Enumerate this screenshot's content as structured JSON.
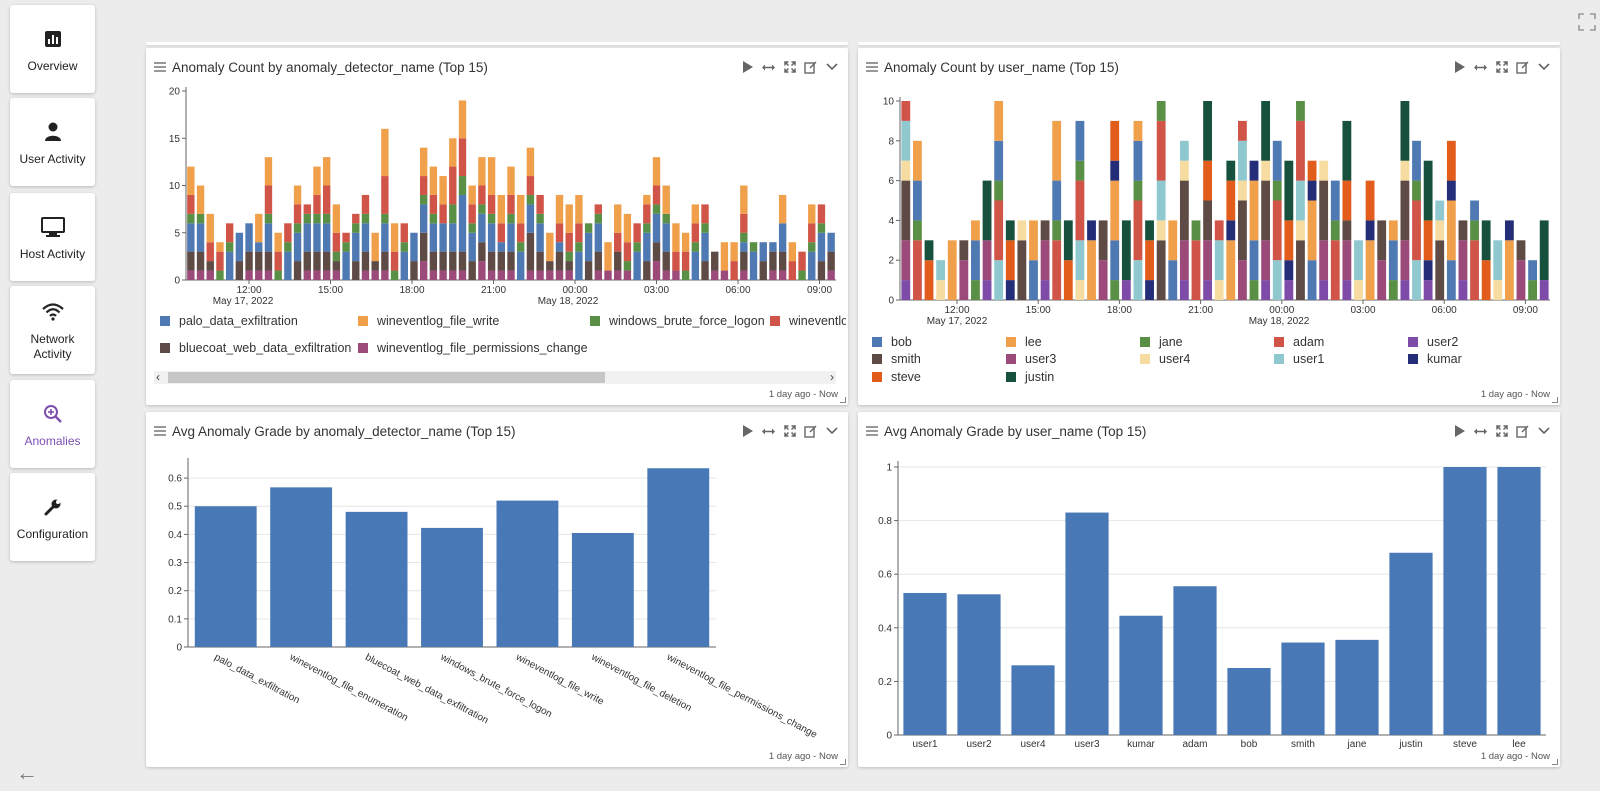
{
  "nav": {
    "items": [
      {
        "label": "Overview",
        "icon": "overview-chart-icon"
      },
      {
        "label": "User Activity",
        "icon": "user-icon"
      },
      {
        "label": "Host Activity",
        "icon": "monitor-icon"
      },
      {
        "label": "Network Activity",
        "icon": "wifi-icon"
      },
      {
        "label": "Anomalies",
        "icon": "zoom-anomaly-icon",
        "active": true
      },
      {
        "label": "Configuration",
        "icon": "wrench-icon"
      }
    ]
  },
  "colors": {
    "accent": "#7b4fb0",
    "bar": "#4878b6"
  },
  "panels": {
    "p1": {
      "title": "Anomaly Count by anomaly_detector_name (Top 15)",
      "footer": "1 day ago - Now"
    },
    "p2": {
      "title": "Anomaly Count by user_name (Top 15)",
      "footer": "1 day ago - Now"
    },
    "p3": {
      "title": "Avg Anomaly Grade by anomaly_detector_name (Top 15)",
      "footer": "1 day ago - Now"
    },
    "p4": {
      "title": "Avg Anomaly Grade by user_name (Top 15)",
      "footer": "1 day ago - Now"
    }
  },
  "chart_data": [
    {
      "type": "bar",
      "stacked": true,
      "title": "Anomaly Count by anomaly_detector_name (Top 15)",
      "ylim": [
        0,
        20
      ],
      "yticks": [
        0,
        5,
        10,
        15,
        20
      ],
      "x_tick_labels": [
        "12:00",
        "15:00",
        "18:00",
        "21:00",
        "00:00",
        "03:00",
        "06:00",
        "09:00"
      ],
      "date_labels": [
        "May 17, 2022",
        "May 18, 2022"
      ],
      "series": [
        {
          "name": "palo_data_exfiltration",
          "color": "#4e79b3"
        },
        {
          "name": "wineventlog_file_write",
          "color": "#f0a04b"
        },
        {
          "name": "windows_brute_force_logon",
          "color": "#5a9046"
        },
        {
          "name": "wineventlog_file_enumeration",
          "color": "#d05548"
        },
        {
          "name": "bluecoat_web_data_exfiltration",
          "color": "#5f4b45"
        },
        {
          "name": "wineventlog_file_permissions_change",
          "color": "#9c4a7a"
        }
      ],
      "totals": [
        12,
        10,
        7,
        4,
        6,
        5,
        6,
        7,
        13,
        5,
        6,
        10,
        8,
        12,
        13,
        8,
        5,
        7,
        9,
        5,
        16,
        6,
        6,
        5,
        14,
        12,
        11,
        15,
        19,
        10,
        13,
        13,
        9,
        12,
        9,
        14,
        9,
        5,
        9,
        8,
        9,
        6,
        8,
        4,
        8,
        7,
        6,
        9,
        13,
        10,
        6,
        5,
        8,
        8,
        3,
        4,
        4,
        10,
        4,
        4,
        4,
        9,
        4,
        3,
        8,
        8,
        5
      ]
    },
    {
      "type": "bar",
      "stacked": true,
      "title": "Anomaly Count by user_name (Top 15)",
      "ylim": [
        0,
        10
      ],
      "yticks": [
        0,
        2,
        4,
        6,
        8,
        10
      ],
      "x_tick_labels": [
        "12:00",
        "15:00",
        "18:00",
        "21:00",
        "00:00",
        "03:00",
        "06:00",
        "09:00"
      ],
      "date_labels": [
        "May 17, 2022",
        "May 18, 2022"
      ],
      "series": [
        {
          "name": "bob",
          "color": "#4e79b3"
        },
        {
          "name": "lee",
          "color": "#f0a04b"
        },
        {
          "name": "jane",
          "color": "#5a9046"
        },
        {
          "name": "adam",
          "color": "#d05548"
        },
        {
          "name": "user2",
          "color": "#7e4ca8"
        },
        {
          "name": "smith",
          "color": "#5f4b45"
        },
        {
          "name": "user3",
          "color": "#9c4a7a"
        },
        {
          "name": "user4",
          "color": "#f6dca0"
        },
        {
          "name": "user1",
          "color": "#8fc8cf"
        },
        {
          "name": "kumar",
          "color": "#242d78"
        },
        {
          "name": "steve",
          "color": "#e25d1c"
        },
        {
          "name": "justin",
          "color": "#17513d"
        }
      ],
      "totals": [
        10,
        8,
        3,
        2,
        3,
        3,
        4,
        6,
        10,
        4,
        4,
        4,
        4,
        9,
        4,
        9,
        4,
        4,
        9,
        4,
        9,
        4,
        10,
        4,
        8,
        4,
        10,
        4,
        7,
        9,
        7,
        10,
        8,
        7,
        10,
        7,
        7,
        6,
        9,
        3,
        6,
        4,
        4,
        10,
        8,
        7,
        5,
        8,
        4,
        5,
        4,
        3,
        4,
        3,
        2,
        4
      ]
    },
    {
      "type": "bar",
      "title": "Avg Anomaly Grade by anomaly_detector_name (Top 15)",
      "categories": [
        "palo_data_exfiltration",
        "wineventlog_file_enumeration",
        "bluecoat_web_data_exfiltration",
        "windows_brute_force_logon",
        "wineventlog_file_write",
        "wineventlog_file_deletion",
        "wineventlog_file_permissions_change"
      ],
      "values": [
        0.5,
        0.567,
        0.48,
        0.423,
        0.52,
        0.405,
        0.635
      ],
      "ylim": [
        0,
        0.65
      ],
      "yticks": [
        0,
        0.1,
        0.2,
        0.3,
        0.4,
        0.5,
        0.6
      ],
      "ytick_labels": [
        "0",
        "0.1",
        "0.2",
        "0.3",
        "0.4",
        "0.5",
        "0.6"
      ]
    },
    {
      "type": "bar",
      "title": "Avg Anomaly Grade by user_name (Top 15)",
      "categories": [
        "user1",
        "user2",
        "user4",
        "user3",
        "kumar",
        "adam",
        "bob",
        "smith",
        "jane",
        "justin",
        "steve",
        "lee"
      ],
      "values": [
        0.53,
        0.525,
        0.26,
        0.83,
        0.445,
        0.555,
        0.25,
        0.345,
        0.355,
        0.68,
        1.0,
        1.0
      ],
      "ylim": [
        0,
        1
      ],
      "yticks": [
        0,
        0.2,
        0.4,
        0.6,
        0.8,
        1
      ],
      "ytick_labels": [
        "0",
        "0.2",
        "0.4",
        "0.6",
        "0.8",
        "1"
      ]
    }
  ]
}
